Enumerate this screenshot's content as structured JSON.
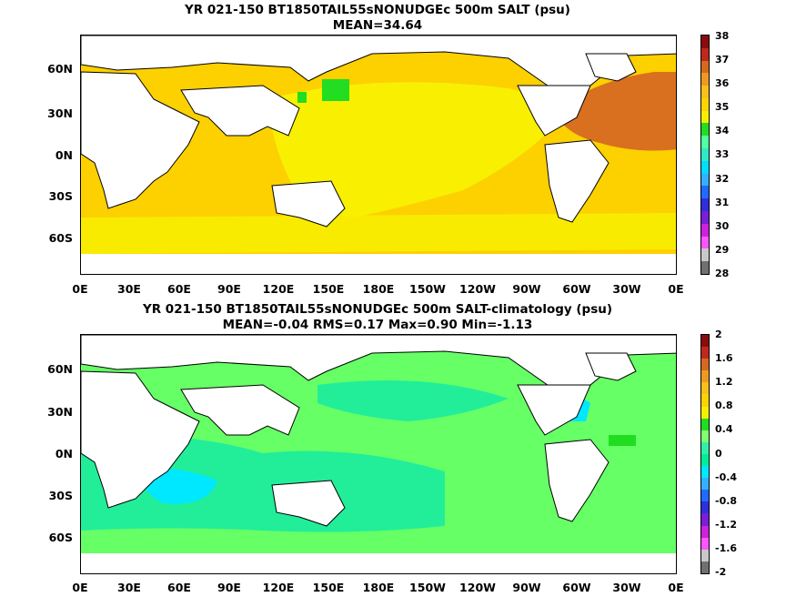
{
  "panel1": {
    "title_line1": "YR 021-150 BT1850TAIL55sNONUDGEc 500m SALT (psu)",
    "title_line2": "MEAN=34.64",
    "variable": "SALT",
    "units": "psu",
    "mean": 34.64,
    "colorbar": {
      "labels": [
        "38",
        "37",
        "36",
        "35",
        "34",
        "33",
        "32",
        "31",
        "30",
        "29",
        "28"
      ],
      "colors": [
        "#8a0c0c",
        "#c0281e",
        "#d46a1e",
        "#ee9a22",
        "#f7c01a",
        "#fbd500",
        "#f6f000",
        "#22dd22",
        "#50ffa0",
        "#30e8c8",
        "#00ddff",
        "#33b0ff",
        "#1f6bff",
        "#2f2fe0",
        "#7a1ed8",
        "#cc22dd",
        "#ff55ff",
        "#c8c8c8",
        "#707070"
      ]
    }
  },
  "panel2": {
    "title_line1": "YR 021-150 BT1850TAIL55sNONUDGEc 500m SALT-climatology (psu)",
    "title_line2": "MEAN=-0.04   RMS=0.17   Max=0.90   Min=-1.13",
    "variable": "SALT-climatology",
    "units": "psu",
    "mean": -0.04,
    "rms": 0.17,
    "max": 0.9,
    "min": -1.13,
    "colorbar": {
      "labels": [
        "2",
        "1.6",
        "1.2",
        "0.8",
        "0.4",
        "0",
        "-0.4",
        "-0.8",
        "-1.2",
        "-1.6",
        "-2"
      ],
      "colors": [
        "#8a0c0c",
        "#c0281e",
        "#d46a1e",
        "#ee9a22",
        "#f7c01a",
        "#fbd500",
        "#f6f000",
        "#22dd22",
        "#80ff70",
        "#30f0a8",
        "#00ee99",
        "#00e8ff",
        "#33b0ff",
        "#1f6bff",
        "#2f2fe0",
        "#7a1ed8",
        "#cc22dd",
        "#ff55ff",
        "#c8c8c8",
        "#707070"
      ]
    }
  },
  "axes": {
    "lat_labels": [
      "60N",
      "30N",
      "0N",
      "30S",
      "60S"
    ],
    "lon_labels": [
      "0E",
      "30E",
      "60E",
      "90E",
      "120E",
      "150E",
      "180E",
      "150W",
      "120W",
      "90W",
      "60W",
      "30W",
      "0E"
    ]
  },
  "colors": {
    "land": "#ffffff",
    "coast": "#000000",
    "p1_base": "#fdd000",
    "p1_pacific": "#f8f000",
    "p1_atlantic": "#d87020",
    "p1_med": "#8b1010",
    "p1_arabian": "#f0a020",
    "p1_fresh": "#22dd22",
    "p2_base": "#66ff66",
    "p2_mid": "#22ee99",
    "p2_negative": "#00e8ff",
    "p2_positive": "#20dd20"
  }
}
